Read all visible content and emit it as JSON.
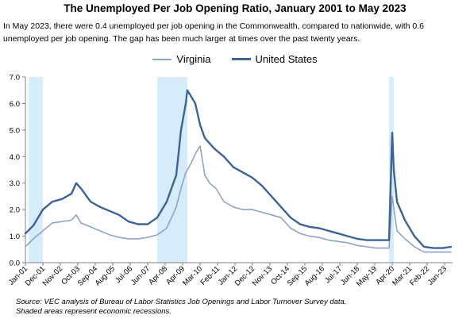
{
  "title": "The Unemployed Per Job Opening Ratio, January 2001 to May 2023",
  "subtitle": "In May 2023, there were 0.4 unemployed per job opening in the Commonwealth, compared to nationwide, with 0.6 unemployed per job opening. The gap has been much larger at times over the past twenty years.",
  "source_line1": "Source: VEC analysis of Bureau of Labor Statistics Job Openings and Labor Turnover Survey data.",
  "source_line2": "Shaded areas represent economic recessions.",
  "chart_data": {
    "type": "line",
    "title": "The Unemployed Per Job Opening Ratio, January 2001 to May 2023",
    "xlabel": "",
    "ylabel": "",
    "ylim": [
      0,
      7
    ],
    "yticks": [
      "0.0",
      "1.0",
      "2.0",
      "3.0",
      "4.0",
      "5.0",
      "6.0",
      "7.0"
    ],
    "xticks": [
      "Jan-01",
      "Dec-01",
      "Nov-02",
      "Oct-03",
      "Sep-04",
      "Aug-05",
      "Jul-06",
      "Jun-07",
      "Apr-08",
      "Apr-09",
      "Mar-10",
      "Feb-11",
      "Jan-12",
      "Dec-12",
      "Nov-13",
      "Oct-14",
      "Sep-15",
      "Aug-16",
      "Jul-17",
      "Jun-18",
      "May-19",
      "Apr-20",
      "Mar-21",
      "Feb-22",
      "Jan-23"
    ],
    "legend_position": "top-center",
    "grid": false,
    "colors": {
      "virginia": "#8fa3c4",
      "united_states": "#3a639a",
      "recession": "#d6ecfa"
    },
    "recessions": [
      [
        "2001-03",
        "2001-11"
      ],
      [
        "2007-12",
        "2009-06"
      ],
      [
        "2020-02",
        "2020-04"
      ]
    ],
    "series": [
      {
        "name": "Virginia",
        "points": [
          [
            "2001-01",
            0.6
          ],
          [
            "2001-06",
            0.9
          ],
          [
            "2001-12",
            1.2
          ],
          [
            "2002-06",
            1.5
          ],
          [
            "2002-12",
            1.55
          ],
          [
            "2003-06",
            1.6
          ],
          [
            "2003-09",
            1.8
          ],
          [
            "2003-12",
            1.5
          ],
          [
            "2004-06",
            1.35
          ],
          [
            "2004-12",
            1.2
          ],
          [
            "2005-06",
            1.05
          ],
          [
            "2005-12",
            0.95
          ],
          [
            "2006-06",
            0.9
          ],
          [
            "2006-12",
            0.9
          ],
          [
            "2007-06",
            0.95
          ],
          [
            "2007-12",
            1.05
          ],
          [
            "2008-06",
            1.3
          ],
          [
            "2008-12",
            2.1
          ],
          [
            "2009-03",
            2.8
          ],
          [
            "2009-06",
            3.4
          ],
          [
            "2009-09",
            3.7
          ],
          [
            "2009-12",
            4.1
          ],
          [
            "2010-03",
            4.4
          ],
          [
            "2010-06",
            3.3
          ],
          [
            "2010-09",
            3.0
          ],
          [
            "2011-01",
            2.8
          ],
          [
            "2011-06",
            2.3
          ],
          [
            "2011-12",
            2.1
          ],
          [
            "2012-06",
            2.0
          ],
          [
            "2012-12",
            2.0
          ],
          [
            "2013-06",
            1.9
          ],
          [
            "2013-12",
            1.8
          ],
          [
            "2014-06",
            1.7
          ],
          [
            "2014-12",
            1.3
          ],
          [
            "2015-06",
            1.1
          ],
          [
            "2015-12",
            1.0
          ],
          [
            "2016-06",
            0.95
          ],
          [
            "2016-12",
            0.85
          ],
          [
            "2017-06",
            0.8
          ],
          [
            "2017-12",
            0.75
          ],
          [
            "2018-06",
            0.65
          ],
          [
            "2018-12",
            0.6
          ],
          [
            "2019-06",
            0.55
          ],
          [
            "2019-12",
            0.55
          ],
          [
            "2020-02",
            0.55
          ],
          [
            "2020-04",
            2.5
          ],
          [
            "2020-07",
            1.2
          ],
          [
            "2020-12",
            0.9
          ],
          [
            "2021-06",
            0.6
          ],
          [
            "2021-12",
            0.4
          ],
          [
            "2022-06",
            0.4
          ],
          [
            "2022-12",
            0.4
          ],
          [
            "2023-05",
            0.4
          ]
        ]
      },
      {
        "name": "United States",
        "points": [
          [
            "2001-01",
            1.1
          ],
          [
            "2001-06",
            1.4
          ],
          [
            "2001-12",
            2.0
          ],
          [
            "2002-06",
            2.3
          ],
          [
            "2002-12",
            2.4
          ],
          [
            "2003-06",
            2.6
          ],
          [
            "2003-09",
            3.0
          ],
          [
            "2003-12",
            2.8
          ],
          [
            "2004-06",
            2.3
          ],
          [
            "2004-12",
            2.1
          ],
          [
            "2005-06",
            1.95
          ],
          [
            "2005-12",
            1.8
          ],
          [
            "2006-06",
            1.55
          ],
          [
            "2006-12",
            1.45
          ],
          [
            "2007-06",
            1.45
          ],
          [
            "2007-12",
            1.7
          ],
          [
            "2008-06",
            2.3
          ],
          [
            "2008-12",
            3.3
          ],
          [
            "2009-03",
            5.0
          ],
          [
            "2009-06",
            6.0
          ],
          [
            "2009-07",
            6.5
          ],
          [
            "2009-09",
            6.3
          ],
          [
            "2009-12",
            6.0
          ],
          [
            "2010-03",
            5.2
          ],
          [
            "2010-06",
            4.7
          ],
          [
            "2010-12",
            4.3
          ],
          [
            "2011-06",
            4.0
          ],
          [
            "2011-12",
            3.6
          ],
          [
            "2012-06",
            3.4
          ],
          [
            "2012-12",
            3.2
          ],
          [
            "2013-06",
            2.9
          ],
          [
            "2013-12",
            2.5
          ],
          [
            "2014-06",
            2.1
          ],
          [
            "2014-12",
            1.7
          ],
          [
            "2015-06",
            1.45
          ],
          [
            "2015-12",
            1.35
          ],
          [
            "2016-06",
            1.3
          ],
          [
            "2016-12",
            1.2
          ],
          [
            "2017-06",
            1.1
          ],
          [
            "2017-12",
            1.0
          ],
          [
            "2018-06",
            0.9
          ],
          [
            "2018-12",
            0.85
          ],
          [
            "2019-06",
            0.85
          ],
          [
            "2019-12",
            0.85
          ],
          [
            "2020-02",
            0.85
          ],
          [
            "2020-04",
            4.9
          ],
          [
            "2020-05",
            3.5
          ],
          [
            "2020-07",
            2.3
          ],
          [
            "2020-12",
            1.6
          ],
          [
            "2021-06",
            1.0
          ],
          [
            "2021-12",
            0.6
          ],
          [
            "2022-06",
            0.55
          ],
          [
            "2022-12",
            0.55
          ],
          [
            "2023-05",
            0.6
          ]
        ]
      }
    ]
  }
}
